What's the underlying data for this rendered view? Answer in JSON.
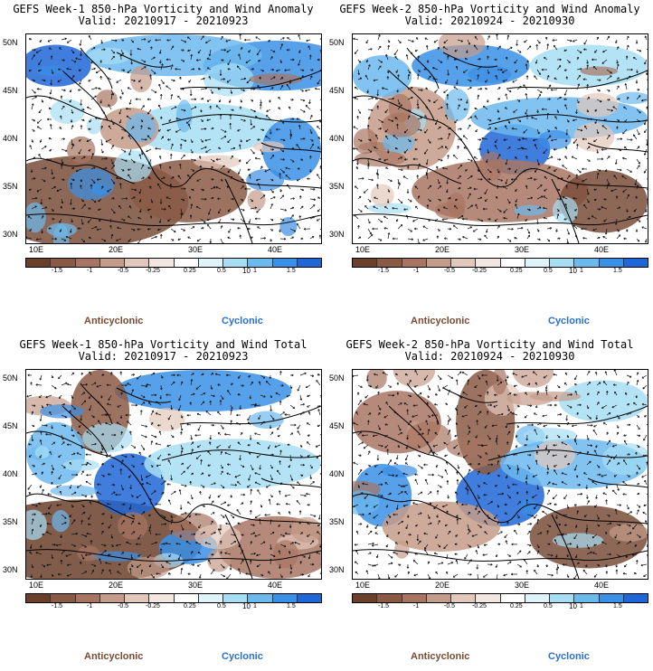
{
  "panels": [
    {
      "title": "GEFS Week-1 850-hPa Vorticity and Wind Anomaly",
      "valid": "Valid: 20210917 - 20210923"
    },
    {
      "title": "GEFS Week-2 850-hPa Vorticity and Wind Anomaly",
      "valid": "Valid: 20210924 - 20210930"
    },
    {
      "title": "GEFS Week-1 850-hPa Vorticity and Wind Total",
      "valid": "Valid: 20210917 - 20210923"
    },
    {
      "title": "GEFS Week-2 850-hPa Vorticity and Wind Total",
      "valid": "Valid: 20210924 - 20210930"
    }
  ],
  "lat_labels": [
    "50N",
    "45N",
    "40N",
    "35N",
    "30N"
  ],
  "lon_labels": [
    "10E",
    "20E",
    "30E",
    "40E"
  ],
  "colorbar": {
    "labels": [
      "-1.5",
      "-1",
      "-0.5",
      "-0.25",
      "0.25",
      "0.5",
      "1",
      "1.5"
    ],
    "scale_note": "10",
    "colors": [
      "#6b3f2a",
      "#8b5a45",
      "#a87563",
      "#c59b89",
      "#e2c8bb",
      "#f3e6e0",
      "#ffffff",
      "#dff3fb",
      "#a8def5",
      "#6cb9ee",
      "#3a8fe6",
      "#1f66d6"
    ]
  },
  "legend": {
    "anticyclonic": "Anticyclonic",
    "cyclonic": "Cyclonic"
  }
}
